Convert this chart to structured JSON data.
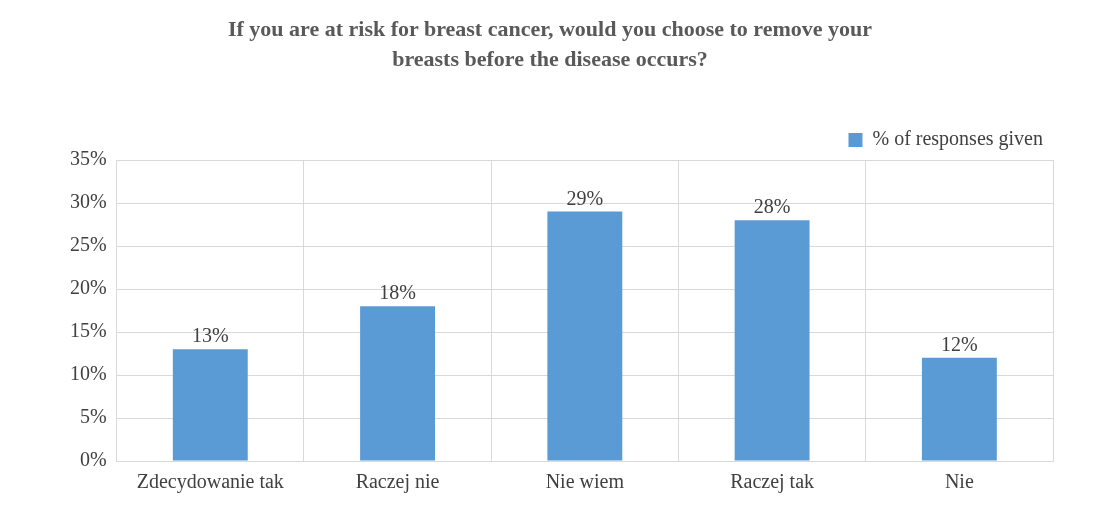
{
  "chart_data": {
    "type": "bar",
    "title": "If you are at risk for breast cancer, would you choose to remove your\nbreasts before the disease occurs?",
    "categories": [
      "Zdecydowanie tak",
      "Raczej nie",
      "Nie wiem",
      "Raczej tak",
      "Nie"
    ],
    "series": [
      {
        "name": "% of responses given",
        "color": "#5b9bd5",
        "values": [
          13,
          18,
          29,
          28,
          12
        ],
        "value_labels": [
          "13%",
          "18%",
          "29%",
          "28%",
          "12%"
        ]
      }
    ],
    "ylim": [
      0,
      35
    ],
    "yticks": [
      {
        "value": 0,
        "label": "0%"
      },
      {
        "value": 5,
        "label": "5%"
      },
      {
        "value": 10,
        "label": "10%"
      },
      {
        "value": 15,
        "label": "15%"
      },
      {
        "value": 20,
        "label": "20%"
      },
      {
        "value": 25,
        "label": "25%"
      },
      {
        "value": 30,
        "label": "30%"
      },
      {
        "value": 35,
        "label": "35%"
      }
    ],
    "grid": true,
    "legend": "top right"
  }
}
